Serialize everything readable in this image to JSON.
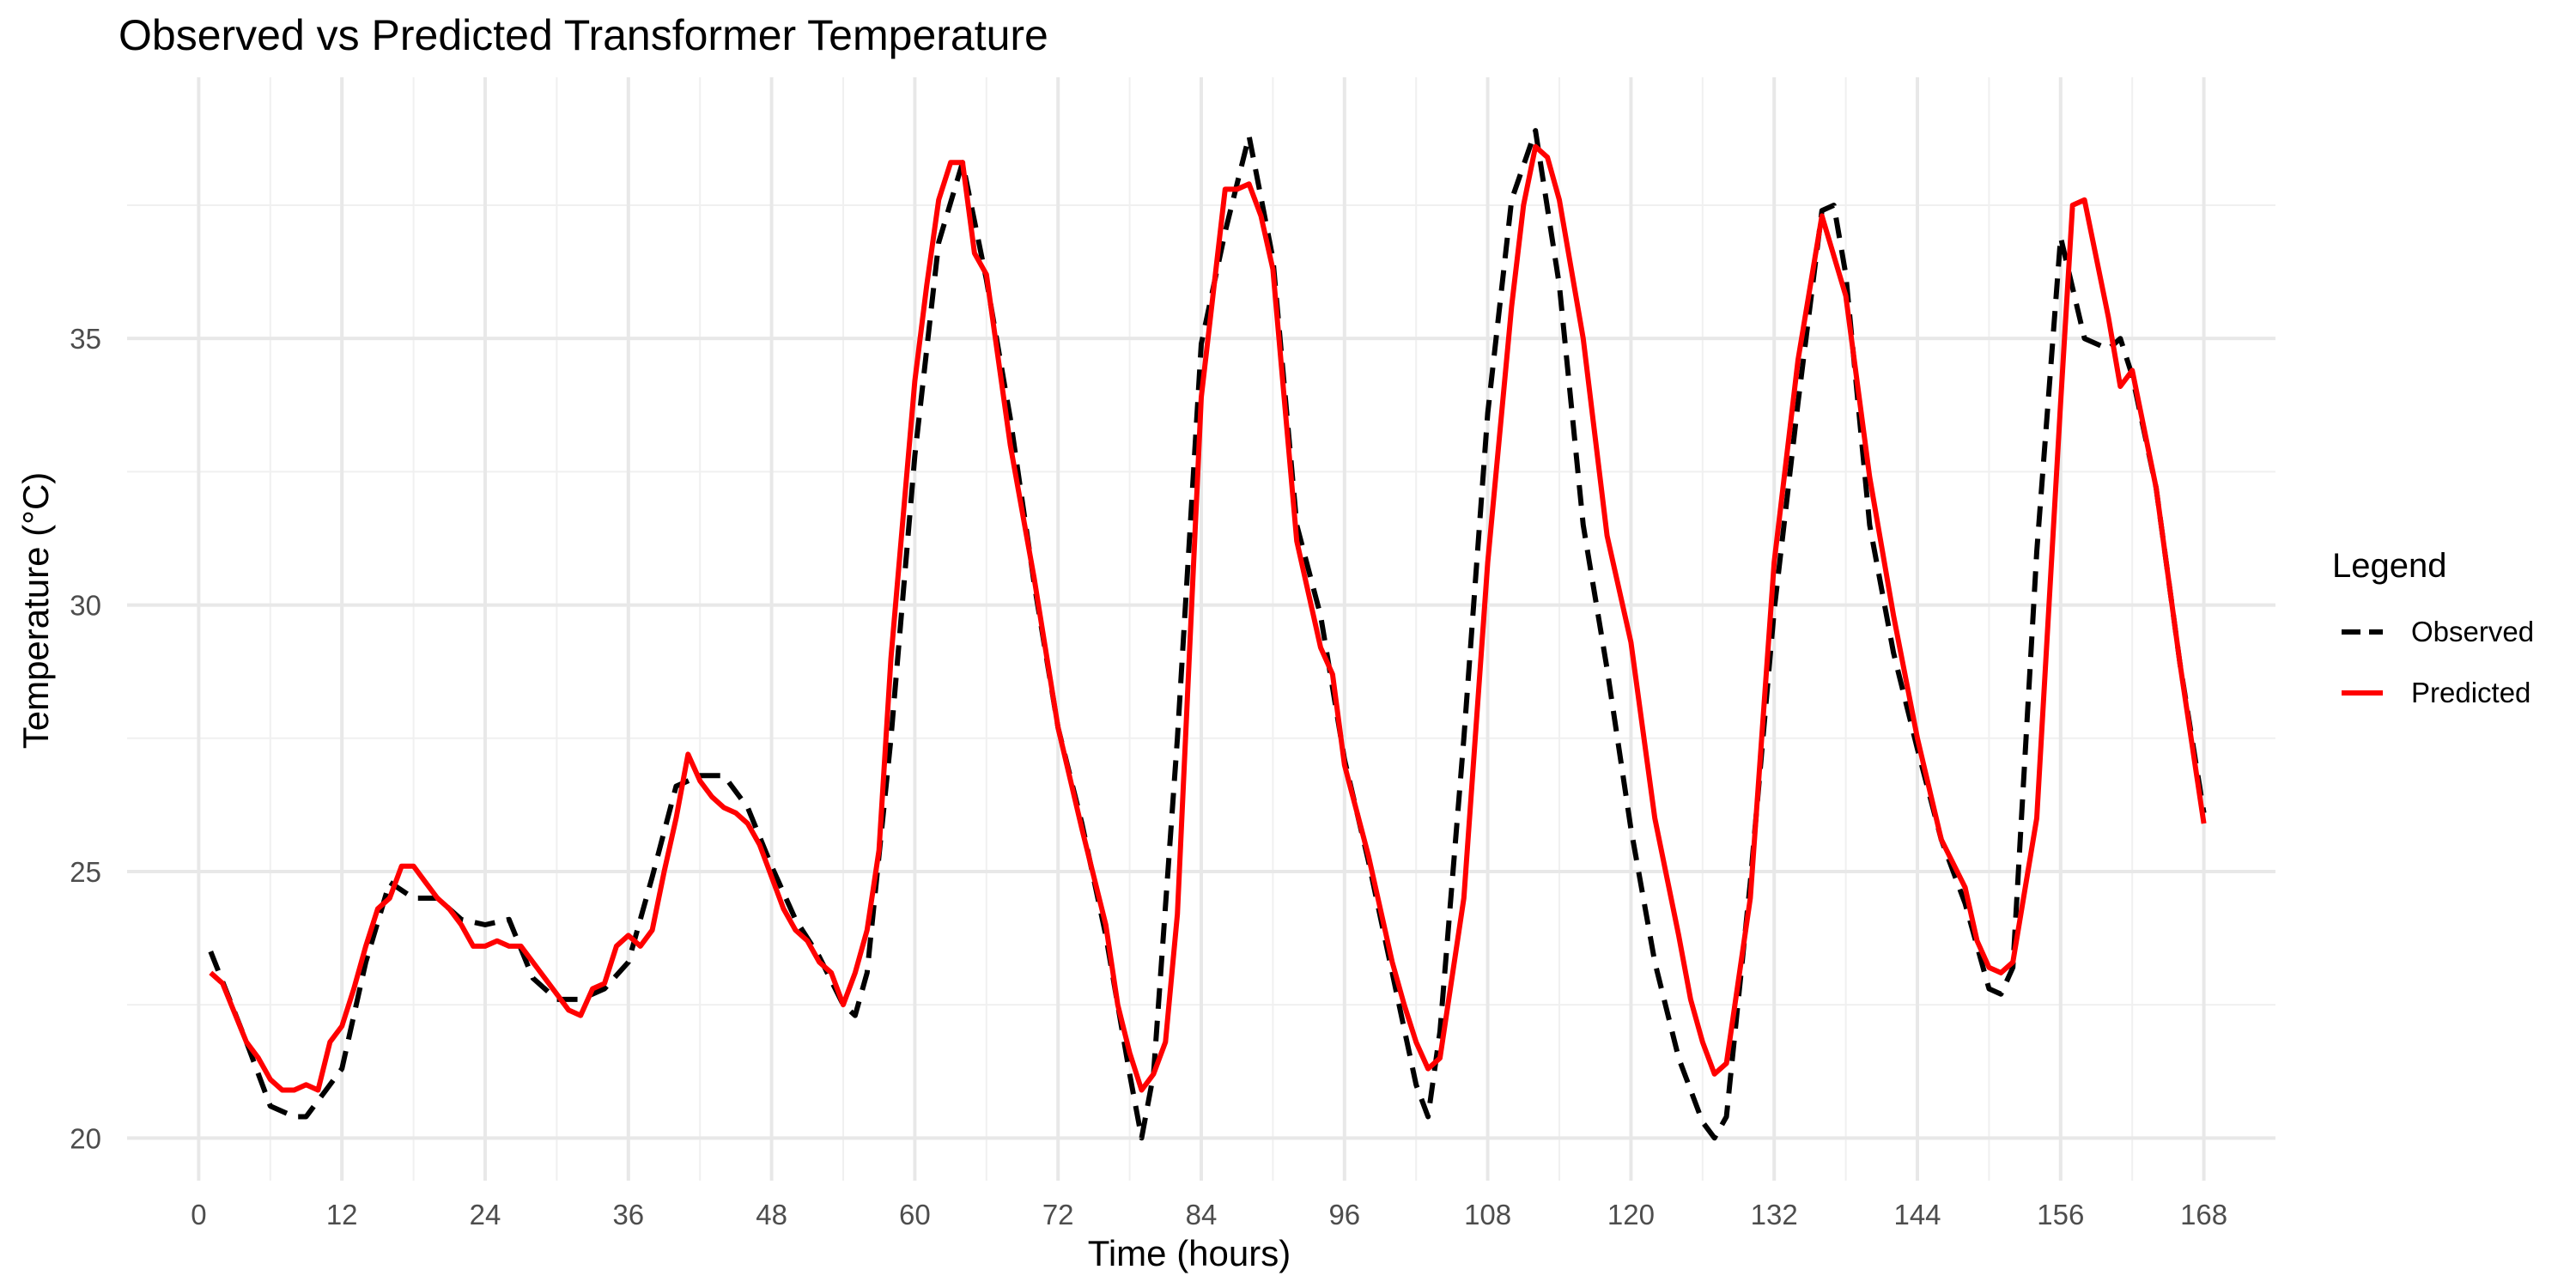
{
  "chart_data": {
    "type": "line",
    "title": "Observed vs Predicted Transformer Temperature",
    "xlabel": "Time (hours)",
    "ylabel": "Temperature (°C)",
    "xlim": [
      -6,
      174
    ],
    "ylim": [
      19.2,
      39.9
    ],
    "x_ticks": [
      0,
      12,
      24,
      36,
      48,
      60,
      72,
      84,
      96,
      108,
      120,
      132,
      144,
      156,
      168
    ],
    "y_ticks": [
      20,
      25,
      30,
      35
    ],
    "grid": true,
    "legend": {
      "title": "Legend",
      "placement": "right",
      "entries": [
        "Observed",
        "Predicted"
      ]
    },
    "colors": {
      "Observed": "#000000",
      "Predicted": "#ff0000"
    },
    "series": [
      {
        "name": "Observed",
        "style": "dashed",
        "x": [
          1,
          4,
          6,
          8,
          9,
          10,
          12,
          14,
          16,
          18,
          20,
          22,
          24,
          26,
          28,
          30,
          32,
          34,
          36,
          38,
          40,
          42,
          44,
          46,
          48,
          50,
          52,
          54,
          55,
          56,
          58,
          60,
          62,
          64,
          66,
          68,
          70,
          72,
          74,
          76,
          78,
          79,
          80,
          82,
          84,
          86,
          88,
          90,
          92,
          94,
          96,
          98,
          100,
          102,
          103,
          104,
          106,
          108,
          110,
          112,
          114,
          116,
          118,
          120,
          122,
          124,
          126,
          127,
          128,
          130,
          132,
          134,
          136,
          137,
          138,
          140,
          142,
          144,
          146,
          148,
          150,
          151,
          152,
          154,
          156,
          158,
          160,
          161,
          162,
          164,
          166,
          168
        ],
        "y": [
          23.5,
          21.8,
          20.6,
          20.4,
          20.4,
          20.7,
          21.3,
          23.3,
          24.8,
          24.5,
          24.5,
          24.1,
          24.0,
          24.1,
          23.0,
          22.6,
          22.6,
          22.8,
          23.3,
          24.9,
          26.6,
          26.8,
          26.8,
          26.2,
          25.1,
          24.1,
          23.4,
          22.5,
          22.3,
          23.1,
          27.5,
          32.8,
          36.8,
          38.3,
          36.1,
          33.5,
          30.4,
          27.7,
          25.9,
          23.8,
          21.2,
          20.0,
          21.2,
          27.5,
          34.9,
          37.0,
          38.8,
          36.5,
          31.5,
          29.8,
          27.1,
          25.2,
          23.1,
          21.0,
          20.4,
          22.0,
          27.5,
          33.6,
          37.6,
          38.9,
          36.0,
          31.5,
          28.8,
          25.8,
          23.3,
          21.5,
          20.3,
          20.0,
          20.4,
          24.8,
          29.9,
          33.8,
          37.4,
          37.5,
          36.2,
          31.5,
          29.1,
          27.3,
          25.6,
          24.4,
          22.8,
          22.7,
          23.2,
          31.0,
          36.9,
          35.0,
          34.8,
          35.0,
          34.3,
          32.2,
          28.9,
          26.1
        ]
      },
      {
        "name": "Predicted",
        "style": "solid",
        "x": [
          1,
          2,
          4,
          5,
          6,
          7,
          8,
          9,
          10,
          11,
          12,
          13,
          14,
          15,
          16,
          17,
          18,
          19,
          20,
          21,
          22,
          23,
          24,
          25,
          26,
          27,
          28,
          30,
          31,
          32,
          33,
          34,
          35,
          36,
          37,
          38,
          39,
          40,
          41,
          42,
          43,
          44,
          45,
          46,
          47,
          48,
          49,
          50,
          51,
          52,
          53,
          54,
          55,
          56,
          57,
          58,
          60,
          61,
          62,
          63,
          64,
          65,
          66,
          68,
          70,
          72,
          74,
          76,
          77,
          78,
          79,
          80,
          81,
          82,
          84,
          86,
          87,
          88,
          89,
          90,
          92,
          94,
          95,
          96,
          98,
          100,
          101,
          102,
          103,
          104,
          106,
          108,
          110,
          111,
          112,
          113,
          114,
          116,
          118,
          120,
          122,
          124,
          125,
          126,
          127,
          128,
          130,
          132,
          134,
          136,
          138,
          140,
          142,
          144,
          146,
          148,
          149,
          150,
          151,
          152,
          154,
          156,
          157,
          158,
          160,
          161,
          162,
          164,
          166,
          168
        ],
        "y": [
          23.1,
          22.9,
          21.8,
          21.5,
          21.1,
          20.9,
          20.9,
          21.0,
          20.9,
          21.8,
          22.1,
          22.8,
          23.6,
          24.3,
          24.5,
          25.1,
          25.1,
          24.8,
          24.5,
          24.3,
          24.0,
          23.6,
          23.6,
          23.7,
          23.6,
          23.6,
          23.3,
          22.7,
          22.4,
          22.3,
          22.8,
          22.9,
          23.6,
          23.8,
          23.6,
          23.9,
          25.0,
          26.0,
          27.2,
          26.7,
          26.4,
          26.2,
          26.1,
          25.9,
          25.5,
          24.9,
          24.3,
          23.9,
          23.7,
          23.3,
          23.1,
          22.5,
          23.1,
          23.9,
          25.4,
          29.0,
          34.2,
          36.0,
          37.6,
          38.3,
          38.3,
          36.6,
          36.2,
          33.0,
          30.5,
          27.7,
          25.8,
          24.0,
          22.5,
          21.6,
          20.9,
          21.2,
          21.8,
          24.2,
          33.9,
          37.8,
          37.8,
          37.9,
          37.3,
          36.3,
          31.2,
          29.2,
          28.7,
          27.0,
          25.3,
          23.3,
          22.5,
          21.8,
          21.3,
          21.5,
          24.5,
          30.8,
          35.6,
          37.5,
          38.6,
          38.4,
          37.6,
          35.0,
          31.3,
          29.3,
          26.0,
          23.8,
          22.6,
          21.8,
          21.2,
          21.4,
          24.5,
          30.8,
          34.6,
          37.3,
          35.8,
          32.4,
          29.8,
          27.5,
          25.6,
          24.7,
          23.7,
          23.2,
          23.1,
          23.3,
          26.0,
          33.8,
          37.5,
          37.6,
          35.4,
          34.1,
          34.4,
          32.2,
          28.9,
          25.9
        ]
      }
    ]
  }
}
